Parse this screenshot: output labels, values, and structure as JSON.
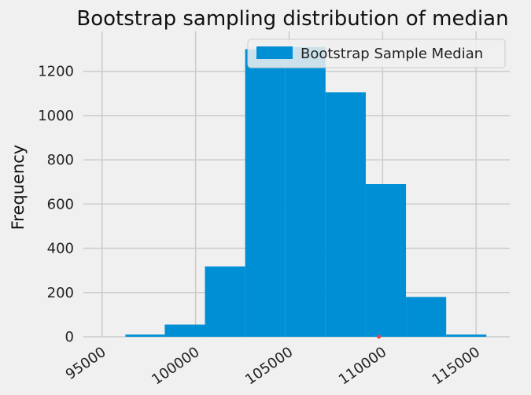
{
  "chart_data": {
    "type": "bar",
    "title": "Bootstrap sampling distribution of median",
    "xlabel": "",
    "ylabel": "Frequency",
    "xlim": [
      94000,
      116800
    ],
    "ylim": [
      0,
      1380
    ],
    "xticks": [
      95000,
      100000,
      105000,
      110000,
      115000
    ],
    "yticks": [
      0,
      200,
      400,
      600,
      800,
      1000,
      1200
    ],
    "grid": true,
    "legend": {
      "position": "top-right",
      "entries": [
        "Bootstrap Sample Median"
      ]
    },
    "series": [
      {
        "name": "Bootstrap Sample Median",
        "color": "#008fd5",
        "bins": [
          {
            "x0": 96250,
            "x1": 98350,
            "count": 10
          },
          {
            "x0": 98350,
            "x1": 100500,
            "count": 55
          },
          {
            "x0": 100500,
            "x1": 102650,
            "count": 318
          },
          {
            "x0": 102650,
            "x1": 104800,
            "count": 1300
          },
          {
            "x0": 104800,
            "x1": 106950,
            "count": 1310
          },
          {
            "x0": 106950,
            "x1": 109100,
            "count": 1105
          },
          {
            "x0": 109100,
            "x1": 111250,
            "count": 690
          },
          {
            "x0": 111250,
            "x1": 113400,
            "count": 180
          },
          {
            "x0": 113400,
            "x1": 115550,
            "count": 10
          }
        ]
      }
    ],
    "marker": {
      "x": 109800,
      "y": 0,
      "color": "#e5484d"
    }
  }
}
